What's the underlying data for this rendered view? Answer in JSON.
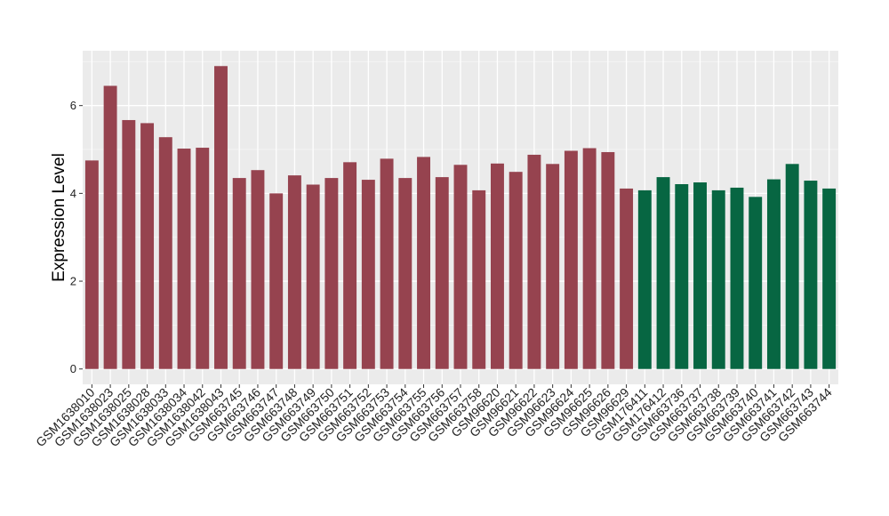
{
  "chart_data": {
    "type": "bar",
    "ylabel": "Expression Level",
    "xlabel": "",
    "ylim": [
      -0.35,
      7.25
    ],
    "yticks": [
      0,
      2,
      4,
      6
    ],
    "grid": true,
    "categories": [
      "GSM1638010",
      "GSM1638023",
      "GSM1638025",
      "GSM1638028",
      "GSM1638033",
      "GSM1638034",
      "GSM1638042",
      "GSM1638043",
      "GSM663745",
      "GSM663746",
      "GSM663747",
      "GSM663748",
      "GSM663749",
      "GSM663750",
      "GSM663751",
      "GSM663752",
      "GSM663753",
      "GSM663754",
      "GSM663755",
      "GSM663756",
      "GSM663757",
      "GSM663758",
      "GSM96620",
      "GSM96621",
      "GSM96622",
      "GSM96623",
      "GSM96624",
      "GSM96625",
      "GSM96626",
      "GSM96629",
      "GSM176411",
      "GSM176412",
      "GSM663736",
      "GSM663737",
      "GSM663738",
      "GSM663739",
      "GSM663740",
      "GSM663741",
      "GSM663742",
      "GSM663743",
      "GSM663744"
    ],
    "values": [
      4.75,
      6.45,
      5.67,
      5.6,
      5.28,
      5.02,
      5.04,
      6.9,
      4.35,
      4.53,
      4.0,
      4.41,
      4.2,
      4.35,
      4.71,
      4.31,
      4.79,
      4.35,
      4.83,
      4.37,
      4.65,
      4.07,
      4.68,
      4.49,
      4.88,
      4.67,
      4.97,
      5.03,
      4.94,
      4.11,
      4.07,
      4.37,
      4.21,
      4.25,
      4.07,
      4.13,
      3.92,
      4.32,
      4.67,
      4.29,
      4.11
    ],
    "bar_colors": [
      "#96434F",
      "#96434F",
      "#96434F",
      "#96434F",
      "#96434F",
      "#96434F",
      "#96434F",
      "#96434F",
      "#96434F",
      "#96434F",
      "#96434F",
      "#96434F",
      "#96434F",
      "#96434F",
      "#96434F",
      "#96434F",
      "#96434F",
      "#96434F",
      "#96434F",
      "#96434F",
      "#96434F",
      "#96434F",
      "#96434F",
      "#96434F",
      "#96434F",
      "#96434F",
      "#96434F",
      "#96434F",
      "#96434F",
      "#96434F",
      "#076642",
      "#076642",
      "#076642",
      "#076642",
      "#076642",
      "#076642",
      "#076642",
      "#076642",
      "#076642",
      "#076642",
      "#076642"
    ],
    "colors": {
      "panel_background": "#EBEBEB",
      "grid_major": "#FFFFFF",
      "group_1": "#96434F",
      "group_2": "#076642"
    }
  }
}
